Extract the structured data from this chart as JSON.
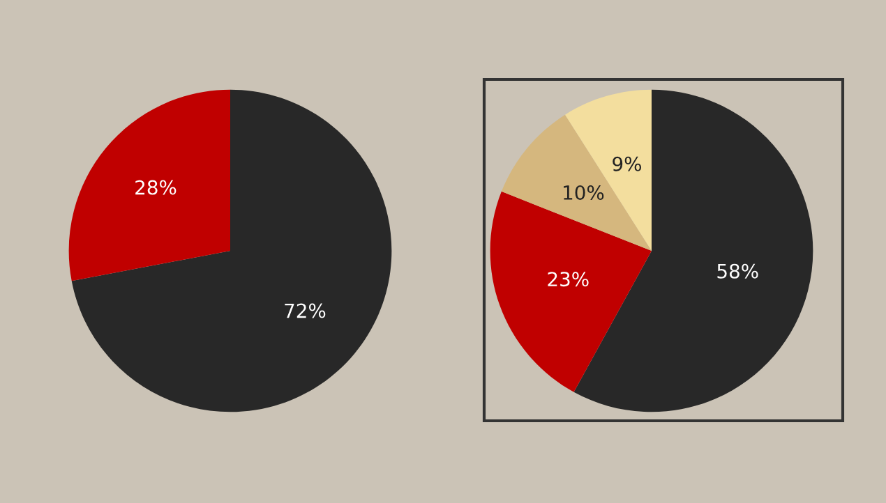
{
  "chart_data": [
    {
      "type": "pie",
      "categories": [
        null,
        null
      ],
      "values": [
        72,
        28
      ],
      "colors": [
        "#282828",
        "#c00000"
      ],
      "value_labels": [
        "72%",
        "28%"
      ]
    },
    {
      "type": "pie",
      "categories": [
        null,
        null,
        null,
        null
      ],
      "values": [
        58,
        23,
        10,
        9
      ],
      "colors": [
        "#282828",
        "#c00000",
        "#d5b77e",
        "#f3de9e"
      ],
      "value_labels": [
        "58%",
        "23%",
        "10%",
        "9%"
      ]
    }
  ]
}
